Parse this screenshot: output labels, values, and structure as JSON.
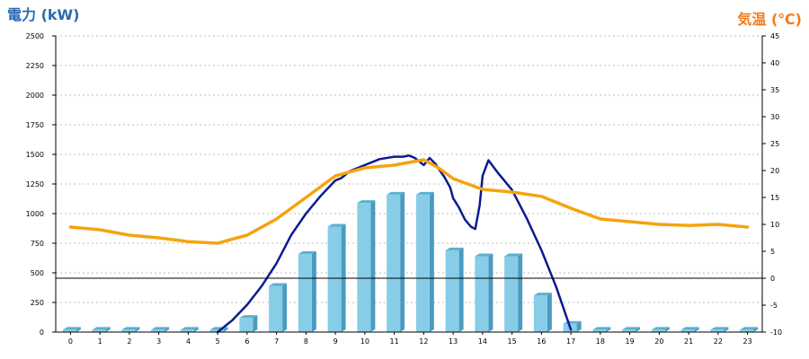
{
  "chart_data": {
    "type": "bar",
    "y_left_label": "電力 (kW)",
    "y_right_label": "気温 (℃)",
    "categories": [
      "0",
      "1",
      "2",
      "3",
      "4",
      "5",
      "6",
      "7",
      "8",
      "9",
      "10",
      "11",
      "12",
      "13",
      "14",
      "15",
      "16",
      "17",
      "18",
      "19",
      "20",
      "21",
      "22",
      "23"
    ],
    "y_left_ticks": [
      0,
      250,
      500,
      750,
      1000,
      1250,
      1500,
      1750,
      2000,
      2250,
      2500
    ],
    "y_right_ticks": [
      -10,
      -5,
      0,
      5,
      10,
      15,
      20,
      25,
      30,
      35,
      40,
      45
    ],
    "y_left_range": [
      0,
      2500
    ],
    "y_right_range": [
      -10,
      45
    ],
    "grid": true,
    "series": [
      {
        "type": "bar",
        "axis": "left",
        "values": [
          20,
          20,
          20,
          20,
          20,
          20,
          120,
          390,
          660,
          890,
          1090,
          1160,
          1160,
          690,
          640,
          640,
          310,
          70,
          20,
          20,
          20,
          20,
          20,
          20
        ]
      },
      {
        "type": "line",
        "axis": "left",
        "x": [
          5,
          5.5,
          6,
          6.5,
          7,
          7.5,
          8,
          8.5,
          9,
          9.2,
          9.5,
          10,
          10.5,
          11,
          11.3,
          11.5,
          11.7,
          12,
          12.2,
          12.4,
          12.5,
          12.7,
          12.9,
          13,
          13.2,
          13.4,
          13.6,
          13.75,
          13.9,
          14,
          14.2,
          14.5,
          15,
          15.5,
          16,
          16.5,
          17
        ],
        "y": [
          0,
          100,
          230,
          390,
          580,
          820,
          1000,
          1150,
          1280,
          1300,
          1360,
          1410,
          1460,
          1480,
          1480,
          1490,
          1470,
          1410,
          1470,
          1420,
          1380,
          1310,
          1220,
          1130,
          1050,
          950,
          890,
          870,
          1070,
          1320,
          1450,
          1350,
          1200,
          960,
          690,
          380,
          20
        ]
      },
      {
        "type": "line",
        "axis": "right",
        "x": [
          0,
          1,
          2,
          3,
          4,
          5,
          6,
          7,
          8,
          9,
          10,
          11,
          11.5,
          12,
          12.5,
          13,
          14,
          15,
          16,
          17,
          18,
          19,
          20,
          21,
          22,
          23
        ],
        "y": [
          9.5,
          9,
          8,
          7.5,
          6.8,
          6.5,
          8,
          11,
          15,
          19,
          20.5,
          21,
          21.5,
          22,
          20.5,
          18.5,
          16.5,
          16,
          15.2,
          13,
          11,
          10.5,
          10,
          9.8,
          10,
          9.5
        ]
      }
    ],
    "colors": {
      "bar_front": "#87cde7",
      "bar_side": "#4b9bc0",
      "bar_top": "#5ab0d0",
      "power_line": "#0b1b8f",
      "temp_line": "#f5a30f",
      "y1_title": "#2a6ab3",
      "y2_title": "#ef7d1a"
    }
  }
}
